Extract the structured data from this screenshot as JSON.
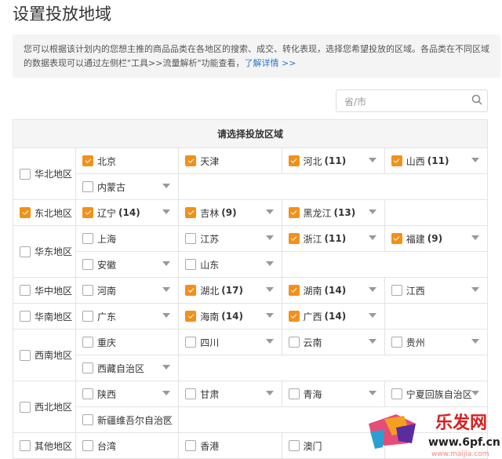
{
  "title": "设置投放地域",
  "notice": {
    "text": "您可以根据该计划内的您想主推的商品品类在各地区的搜索、成交、转化表现，选择您希望投放的区域。各品类在不同区域的数据表现可以通过左侧栏\"工具>>流量解析\"功能查看，",
    "link": "了解详情 >>"
  },
  "search": {
    "placeholder": "省/市"
  },
  "table_header": "请选择投放区域",
  "colors": {
    "accent": "#f39019",
    "link": "#2a75c9"
  },
  "regions": [
    {
      "name": "华北地区",
      "checked": false,
      "provinces": [
        {
          "name": "北京",
          "checked": true,
          "dropdown": false
        },
        {
          "name": "天津",
          "checked": true,
          "dropdown": false
        },
        {
          "name": "河北",
          "count": "(11)",
          "checked": true,
          "dropdown": true
        },
        {
          "name": "山西",
          "count": "(11)",
          "checked": true,
          "dropdown": true
        },
        {
          "name": "内蒙古",
          "checked": false,
          "dropdown": true
        }
      ]
    },
    {
      "name": "东北地区",
      "checked": true,
      "provinces": [
        {
          "name": "辽宁",
          "count": "(14)",
          "checked": true,
          "dropdown": true
        },
        {
          "name": "吉林",
          "count": "(9)",
          "checked": true,
          "dropdown": true
        },
        {
          "name": "黑龙江",
          "count": "(13)",
          "checked": true,
          "dropdown": true
        }
      ]
    },
    {
      "name": "华东地区",
      "checked": false,
      "provinces": [
        {
          "name": "上海",
          "checked": false,
          "dropdown": false
        },
        {
          "name": "江苏",
          "checked": false,
          "dropdown": true
        },
        {
          "name": "浙江",
          "count": "(11)",
          "checked": true,
          "dropdown": true
        },
        {
          "name": "福建",
          "count": "(9)",
          "checked": true,
          "dropdown": true
        },
        {
          "name": "安徽",
          "checked": false,
          "dropdown": true
        },
        {
          "name": "山东",
          "checked": false,
          "dropdown": true
        }
      ]
    },
    {
      "name": "华中地区",
      "checked": false,
      "provinces": [
        {
          "name": "河南",
          "checked": false,
          "dropdown": true
        },
        {
          "name": "湖北",
          "count": "(17)",
          "checked": true,
          "dropdown": true
        },
        {
          "name": "湖南",
          "count": "(14)",
          "checked": true,
          "dropdown": true
        },
        {
          "name": "江西",
          "checked": false,
          "dropdown": true
        }
      ]
    },
    {
      "name": "华南地区",
      "checked": false,
      "provinces": [
        {
          "name": "广东",
          "checked": false,
          "dropdown": true
        },
        {
          "name": "海南",
          "count": "(14)",
          "checked": true,
          "dropdown": true
        },
        {
          "name": "广西",
          "count": "(14)",
          "checked": true,
          "dropdown": true
        }
      ]
    },
    {
      "name": "西南地区",
      "checked": false,
      "provinces": [
        {
          "name": "重庆",
          "checked": false,
          "dropdown": false
        },
        {
          "name": "四川",
          "checked": false,
          "dropdown": true
        },
        {
          "name": "云南",
          "checked": false,
          "dropdown": true
        },
        {
          "name": "贵州",
          "checked": false,
          "dropdown": true
        },
        {
          "name": "西藏自治区",
          "checked": false,
          "dropdown": true
        }
      ]
    },
    {
      "name": "西北地区",
      "checked": false,
      "provinces": [
        {
          "name": "陕西",
          "checked": false,
          "dropdown": true
        },
        {
          "name": "甘肃",
          "checked": false,
          "dropdown": true
        },
        {
          "name": "青海",
          "checked": false,
          "dropdown": true
        },
        {
          "name": "宁夏回族自治区",
          "checked": false,
          "dropdown": true
        },
        {
          "name": "新疆维吾尔自治区",
          "checked": false,
          "dropdown": true
        }
      ]
    },
    {
      "name": "其他地区",
      "checked": false,
      "provinces": [
        {
          "name": "台湾",
          "checked": false,
          "dropdown": false
        },
        {
          "name": "香港",
          "checked": false,
          "dropdown": false
        },
        {
          "name": "澳门",
          "checked": false,
          "dropdown": false
        }
      ]
    }
  ],
  "watermark": {
    "brand": "乐发网",
    "url": "www.6pf.cn",
    "sub": "www.maijia.com"
  }
}
